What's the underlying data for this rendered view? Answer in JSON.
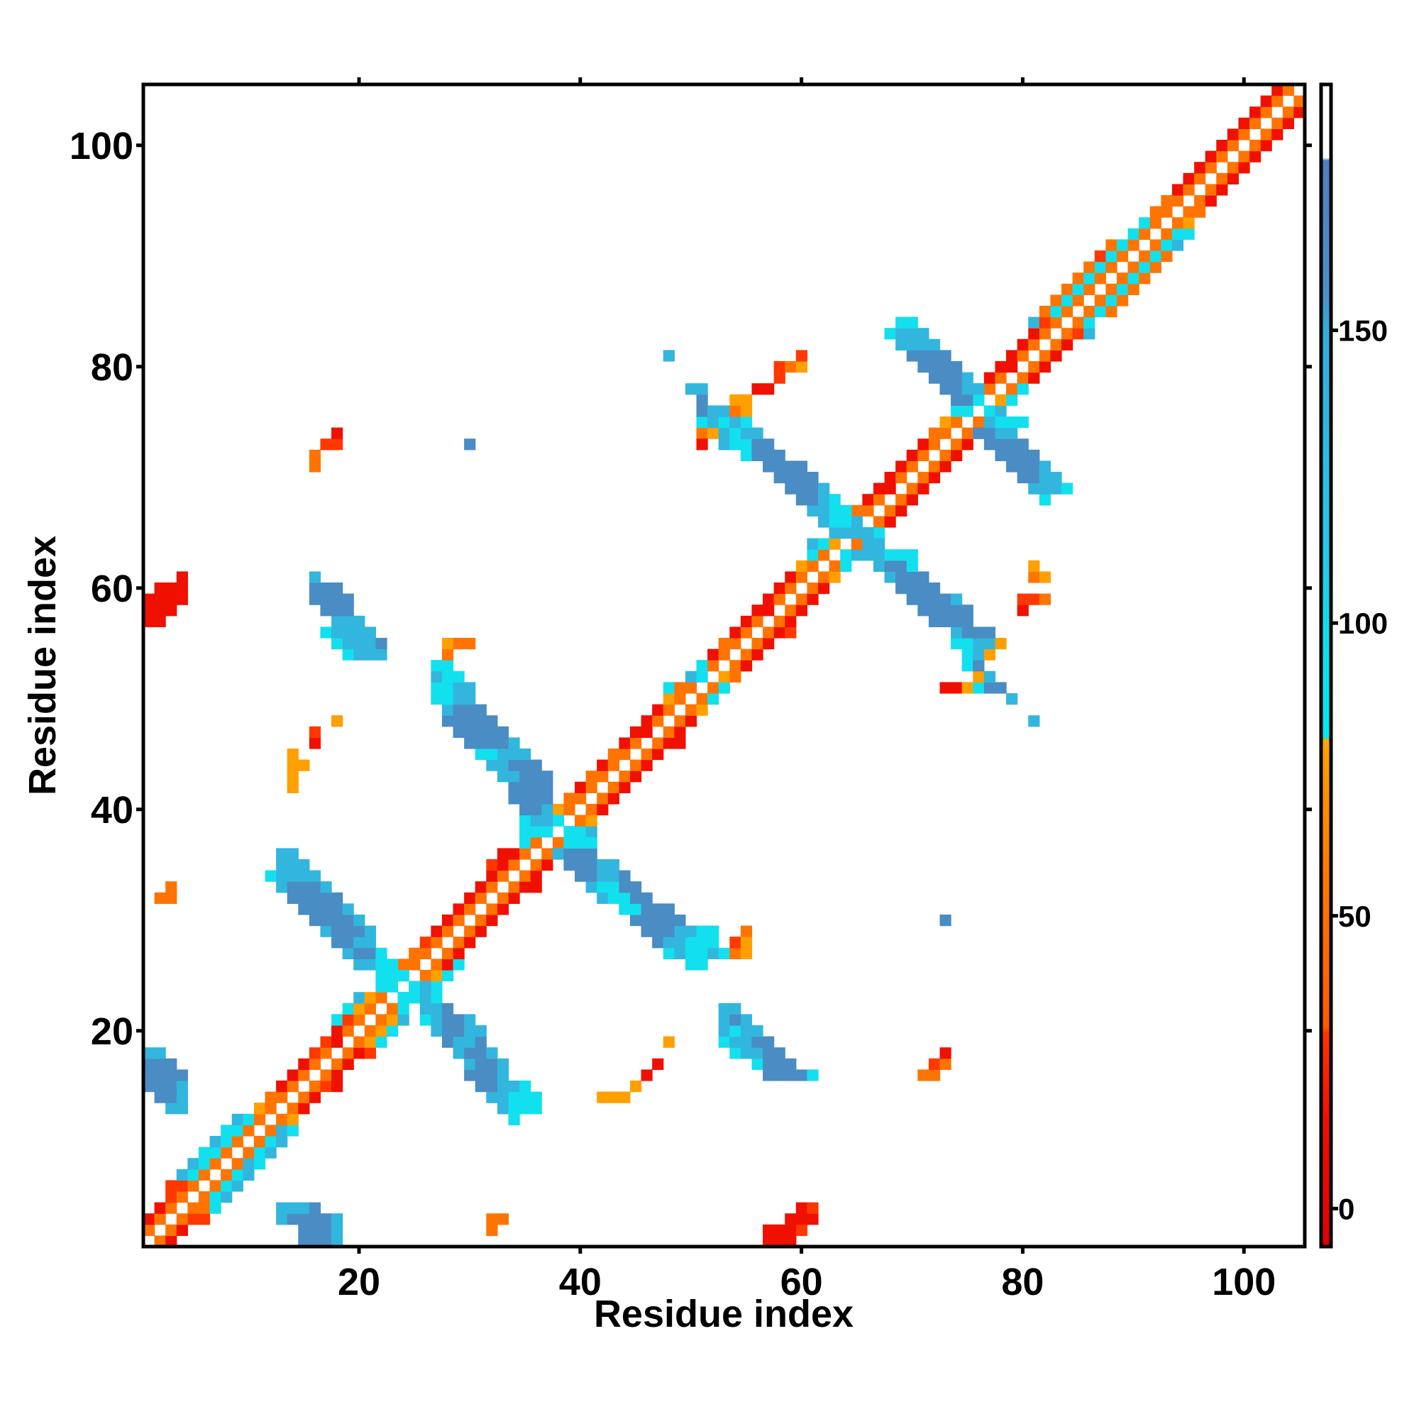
{
  "chart_data": {
    "type": "heatmap",
    "title": "",
    "xlabel": "Residue index",
    "ylabel": "Residue index",
    "xlim": [
      0.5,
      105.5
    ],
    "ylim": [
      0.5,
      105.5
    ],
    "xticks": [
      20,
      40,
      60,
      80,
      100
    ],
    "yticks": [
      20,
      40,
      60,
      80,
      100
    ],
    "grid": false,
    "n_residues": 105,
    "colorbar": {
      "range": [
        -6.5,
        192
      ],
      "ticks": [
        0,
        50,
        100,
        150
      ],
      "placement": "right",
      "stops": [
        [
          -6.5,
          "#e00000"
        ],
        [
          15,
          "#f01000"
        ],
        [
          30,
          "#ff3300"
        ],
        [
          31,
          "#ff5a00"
        ],
        [
          55,
          "#ff7700"
        ],
        [
          75,
          "#ff9900"
        ],
        [
          80,
          "#ffa500"
        ],
        [
          80.5,
          "#00e8f0"
        ],
        [
          100,
          "#10dcec"
        ],
        [
          112,
          "#28c8e8"
        ],
        [
          150,
          "#38aad8"
        ],
        [
          156,
          "#4a90c8"
        ],
        [
          179,
          "#4f7fbf"
        ],
        [
          179.5,
          "#ffffff"
        ],
        [
          192,
          "#ffffff"
        ]
      ]
    },
    "categories": {
      "R": {
        "value": 10,
        "color": "#f01000"
      },
      "r": {
        "value": 25,
        "color": "#ff3800"
      },
      "O": {
        "value": 45,
        "color": "#ff7400"
      },
      "Y": {
        "value": 70,
        "color": "#ffa000"
      },
      "C": {
        "value": 90,
        "color": "#12e0ee"
      },
      "L": {
        "value": 130,
        "color": "#32b6de"
      },
      "B": {
        "value": 165,
        "color": "#4a8cc4"
      }
    },
    "diagonal_offsets": [
      -4,
      4
    ],
    "diagonal": [
      ".....OR..",
      "...O.OR..",
      "..RO.Orr.",
      "..RO.OOC.",
      "..rO.OCL.",
      ".rrO.OCL.",
      ".LCO.OCL.",
      ".LCO.OLC.",
      ".CCO.OCL.",
      ".LCO.OCL.",
      ".CCO.OLC.",
      ".LCO.OY..",
      "..YO.OR..",
      "..OO.OR..",
      "..RO.OrR.",
      "..RO.OR..",
      "..RO.OR..",
      "..rO.ORr.",
      "..rR.OYC.",
      "..RO.OYC.",
      ".CrO.OYL.",
      ".CYO.OC..",
      ".LYO.OYL.",
      "..CC.OYC.",
      "..YO.OYC.",
      "..OO.ORC.",
      "..OO.OR..",
      "..rO.OR..",
      "..RO.OR..",
      "..RO.OR..",
      "..RO.OR..",
      "..RO.OR..",
      "..RO.ORR.",
      "..RO.OR..",
      ".rRO.OR..",
      ".RRO.OCY.",
      "..CO.OC..",
      ".CYC.CCL.",
      "..CO.OY..",
      "..YO.OR..",
      "..OO.OR..",
      "..RO.OR..",
      "..OO.OR..",
      "..RO.OR..",
      "..OO.OR..",
      "..RO.ORR.",
      "..RR.OR..",
      "..RO.OR..",
      "..RO.OY..",
      "..YO.OC..",
      ".COO.OC..",
      "..LC.YO..",
      "..CO.OR..",
      "..RO.OR..",
      "..OO.OR..",
      "..RO.ORr.",
      "..RO.OR..",
      "..RR.OR..",
      "..RO.OR..",
      "..RO.OR..",
      "..RO.OY..",
      "..YO.OC..",
      "..CO.CL..",
      ".LCY.OCL.",
      "..CO.OC..",
      "..YO.OR..",
      "..OO.OR..",
      "..RO.OR..",
      "..RR.OR..",
      "..RO.OR..",
      "..RO.OR..",
      "..RO.OR..",
      "..RO.OR..",
      "..OO.OY..",
      "..YO.OC..",
      "..CO.CL..",
      ".CC..YC..",
      "..CO.OC..",
      "..RO.OR..",
      "..RR.OR..",
      "..RO.OR..",
      "..RO.OR..",
      "..RO.OrL.",
      ".LrO.OC..",
      ".OCO.OCO.",
      ".OCO.OCO.",
      ".OCO.OCO.",
      ".OCO.OCO.",
      ".OCO.OCO.",
      ".rCO.OCO.",
      ".OCO.OCL.",
      "..CO.OCC.",
      "..CO.OY..",
      "..OO.OO..",
      "..OO.OR..",
      "..RO.OR..",
      "..RO.OR..",
      "..RO.OR..",
      "..RO.OR..",
      "..RO.OR..",
      "..RO.OR..",
      "..RO.OR..",
      "..RO.OR..",
      "..RO.OR..",
      "..RO.OR.."
    ],
    "off_diagonal": [
      [
        1,
        15,
        "BBBL"
      ],
      [
        2,
        15,
        "BBBL"
      ],
      [
        3,
        13,
        "LBBBBL"
      ],
      [
        4,
        13,
        "LLLB"
      ],
      [
        12,
        34,
        "C"
      ],
      [
        13,
        33,
        "LCCC"
      ],
      [
        14,
        32,
        "LLCCC"
      ],
      [
        15,
        31,
        "BBLLC"
      ],
      [
        16,
        30,
        "BBBL"
      ],
      [
        17,
        30,
        "LBBL"
      ],
      [
        18,
        29,
        "LBBL"
      ],
      [
        19,
        28,
        "BLLB"
      ],
      [
        20,
        27,
        "LBBLL"
      ],
      [
        21,
        26,
        "CLBBL"
      ],
      [
        22,
        26,
        "LLB"
      ],
      [
        23,
        24,
        "CCLC"
      ],
      [
        24,
        25,
        "CL"
      ],
      [
        26,
        50,
        "CC"
      ],
      [
        27,
        48,
        "CLCCLC"
      ],
      [
        28,
        47,
        "BLLCCC"
      ],
      [
        29,
        46,
        "BBBLLCC"
      ],
      [
        30,
        45,
        "BBBBB"
      ],
      [
        31,
        44,
        "CCBBB"
      ],
      [
        32,
        42,
        "LCCBB"
      ],
      [
        33,
        41,
        "LCCBB"
      ],
      [
        34,
        40,
        "BBLLB"
      ],
      [
        35,
        39,
        "BBBLL"
      ],
      [
        36,
        38,
        "LBBB"
      ],
      [
        37,
        39,
        "CCC"
      ],
      [
        27,
        54,
        "OY"
      ],
      [
        28,
        54,
        "rY"
      ],
      [
        29,
        55,
        "O"
      ],
      [
        16,
        57,
        "BBBBC"
      ],
      [
        17,
        56,
        "CBBB"
      ],
      [
        18,
        54,
        "CLLBB"
      ],
      [
        19,
        53,
        "CLLBB"
      ],
      [
        20,
        53,
        "LCLL"
      ],
      [
        21,
        53,
        "LBL"
      ],
      [
        22,
        53,
        "LL"
      ],
      [
        50,
        79,
        "L"
      ],
      [
        51,
        73,
        "RRYCBB"
      ],
      [
        52,
        76,
        "YL"
      ],
      [
        53,
        75,
        "CB"
      ],
      [
        54,
        75,
        "CLY"
      ],
      [
        55,
        74,
        "CCLLY"
      ],
      [
        56,
        74,
        "LBBB"
      ],
      [
        57,
        72,
        "BBBB"
      ],
      [
        58,
        71,
        "BBBBB"
      ],
      [
        59,
        70,
        "BBBBL"
      ],
      [
        60,
        69,
        "BBBB"
      ],
      [
        61,
        68,
        "LBBB"
      ],
      [
        62,
        67,
        "LBBC"
      ],
      [
        63,
        66,
        "LLCCC"
      ],
      [
        64,
        66,
        "LL"
      ],
      [
        68,
        82,
        "C"
      ],
      [
        69,
        81,
        "LLLC"
      ],
      [
        70,
        80,
        "BBLL"
      ],
      [
        71,
        79,
        "BBBL"
      ],
      [
        72,
        78,
        "BBBB"
      ],
      [
        73,
        77,
        "BBBB"
      ],
      [
        74,
        76,
        "BBLL"
      ],
      [
        75,
        77,
        "LCCC"
      ],
      [
        58,
        80,
        "R"
      ],
      [
        59,
        80,
        "rrO"
      ],
      [
        61,
        81,
        "OY"
      ],
      [
        62,
        81,
        "Y"
      ],
      [
        16,
        71,
        "OO"
      ],
      [
        17,
        72,
        "rO"
      ],
      [
        18,
        73,
        "R"
      ],
      [
        30,
        73,
        "B"
      ],
      [
        48,
        81,
        "L"
      ],
      [
        1,
        57,
        "RRR"
      ],
      [
        2,
        57,
        "RRRr"
      ],
      [
        3,
        59,
        "RRR"
      ],
      [
        4,
        60,
        "Rr"
      ],
      [
        2,
        32,
        "O"
      ],
      [
        3,
        32,
        "OO"
      ],
      [
        14,
        42,
        "YYY"
      ],
      [
        15,
        45,
        "Y"
      ],
      [
        16,
        46,
        "R"
      ],
      [
        17,
        47,
        "R"
      ],
      [
        19,
        48,
        "Y"
      ],
      [
        13,
        3,
        "LL"
      ],
      [
        14,
        2,
        "BBL"
      ],
      [
        15,
        1,
        "BBBL"
      ],
      [
        16,
        1,
        "BBBB"
      ],
      [
        17,
        1,
        "BBB"
      ],
      [
        18,
        1,
        "LL"
      ],
      [
        25,
        22,
        "CCC"
      ],
      [
        26,
        20,
        "LLCC"
      ],
      [
        27,
        19,
        "LBBC"
      ],
      [
        28,
        18,
        "BBLL"
      ],
      [
        29,
        17,
        "LBBBL"
      ],
      [
        30,
        16,
        "BBBBL"
      ],
      [
        31,
        15,
        "BBBBL"
      ],
      [
        32,
        14,
        "BBBBB"
      ],
      [
        33,
        13,
        "LBBBL"
      ],
      [
        34,
        12,
        "CLLLL"
      ],
      [
        35,
        13,
        "LLL"
      ],
      [
        36,
        13,
        "LL"
      ],
      [
        32,
        2,
        "OO"
      ],
      [
        33,
        3,
        "O"
      ],
      [
        38,
        36,
        "C"
      ],
      [
        39,
        35,
        "CLLC"
      ],
      [
        40,
        35,
        "BBL"
      ],
      [
        41,
        34,
        "BBBB"
      ],
      [
        42,
        34,
        "BBBB"
      ],
      [
        43,
        33,
        "LLBBB"
      ],
      [
        44,
        32,
        "LLBBB"
      ],
      [
        45,
        31,
        "CCLLL"
      ],
      [
        46,
        30,
        "BBBBL"
      ],
      [
        47,
        29,
        "BBBBB"
      ],
      [
        48,
        28,
        "BBBBB"
      ],
      [
        49,
        28,
        "LBBB"
      ],
      [
        50,
        27,
        "CCLL"
      ],
      [
        51,
        27,
        "CCLL"
      ],
      [
        52,
        27,
        "LCC"
      ],
      [
        53,
        27,
        "CC"
      ],
      [
        54,
        28,
        "O"
      ],
      [
        55,
        28,
        "YOO"
      ],
      [
        54,
        19,
        "CLLL"
      ],
      [
        55,
        18,
        "CLLLB"
      ],
      [
        56,
        17,
        "CLLLL"
      ],
      [
        57,
        18,
        "LLL"
      ],
      [
        58,
        17,
        "BBB"
      ],
      [
        59,
        16,
        "BBBB"
      ],
      [
        60,
        16,
        "BBB"
      ],
      [
        61,
        16,
        "L"
      ],
      [
        57,
        1,
        "RR"
      ],
      [
        58,
        1,
        "RRR"
      ],
      [
        59,
        1,
        "RRRR"
      ],
      [
        60,
        2,
        "RRR"
      ],
      [
        61,
        4,
        "R"
      ],
      [
        42,
        14,
        "Y"
      ],
      [
        43,
        14,
        "Y"
      ],
      [
        44,
        14,
        "YY"
      ],
      [
        45,
        14,
        "Y"
      ],
      [
        46,
        16,
        "R"
      ],
      [
        47,
        16,
        "r"
      ],
      [
        48,
        18,
        "Y"
      ],
      [
        65,
        63,
        "LLLL"
      ],
      [
        66,
        62,
        "LCCL"
      ],
      [
        67,
        61,
        "LLCC"
      ],
      [
        68,
        60,
        "BBLC"
      ],
      [
        69,
        59,
        "BBBL"
      ],
      [
        70,
        58,
        "BBBB"
      ],
      [
        71,
        57,
        "BBBB"
      ],
      [
        72,
        55,
        "CBBB"
      ],
      [
        73,
        53,
        "LCCBB"
      ],
      [
        74,
        51,
        "OYLCLL"
      ],
      [
        75,
        51,
        "CLCLC"
      ],
      [
        76,
        51,
        "BLLOY"
      ],
      [
        77,
        51,
        "B"
      ],
      [
        77,
        54,
        "YY"
      ],
      [
        78,
        50,
        "LL"
      ],
      [
        73,
        51,
        "R"
      ],
      [
        78,
        56,
        "RR"
      ],
      [
        79,
        58,
        "r"
      ],
      [
        80,
        58,
        "rOY"
      ],
      [
        81,
        60,
        "r"
      ],
      [
        81,
        48,
        "L"
      ],
      [
        76,
        75,
        "C"
      ],
      [
        77,
        74,
        "BBC"
      ],
      [
        78,
        73,
        "BBLL"
      ],
      [
        79,
        72,
        "BBBL"
      ],
      [
        80,
        71,
        "BBBB"
      ],
      [
        81,
        70,
        "BBBB"
      ],
      [
        82,
        69,
        "LLLL"
      ],
      [
        83,
        68,
        "CLLL"
      ],
      [
        84,
        69,
        "CC"
      ],
      [
        71,
        16,
        "O"
      ],
      [
        72,
        16,
        "O"
      ],
      [
        73,
        17,
        "rr"
      ],
      [
        74,
        18,
        "R"
      ],
      [
        73,
        30,
        "B"
      ]
    ]
  }
}
